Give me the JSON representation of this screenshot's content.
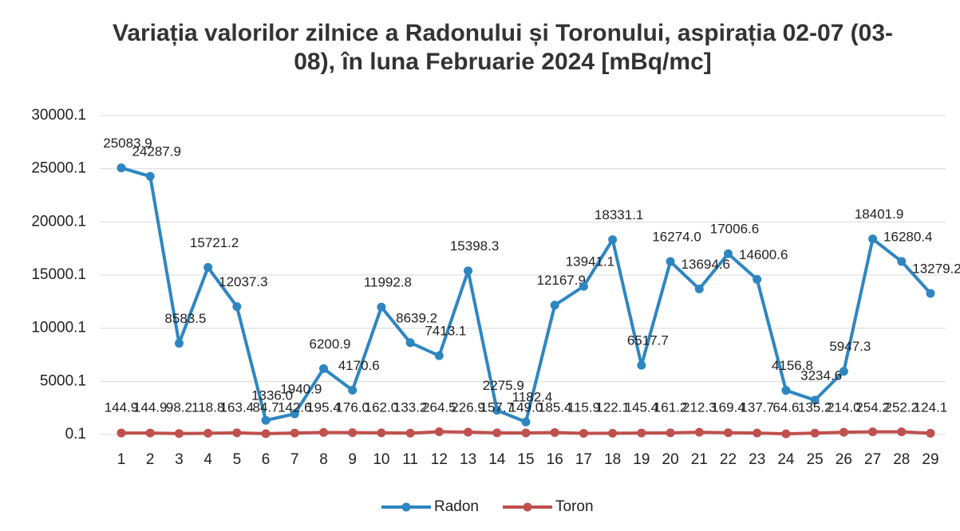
{
  "chart_data": {
    "type": "line",
    "title": "Variația valorilor zilnice a Radonului și Toronului, aspirația 02-07 (03-08), în luna Februarie 2024 [mBq/mc]",
    "categories": [
      "1",
      "2",
      "3",
      "4",
      "5",
      "6",
      "7",
      "8",
      "9",
      "10",
      "11",
      "12",
      "13",
      "14",
      "15",
      "16",
      "17",
      "18",
      "19",
      "20",
      "21",
      "22",
      "23",
      "24",
      "25",
      "26",
      "27",
      "28",
      "29"
    ],
    "series": [
      {
        "name": "Radon",
        "color": "#2e86c1",
        "values": [
          25083.9,
          24287.9,
          8583.5,
          15721.2,
          12037.3,
          1336.0,
          1940.9,
          6200.9,
          4170.6,
          11992.8,
          8639.2,
          7413.1,
          15398.3,
          2275.9,
          1182.4,
          12167.9,
          13941.1,
          18331.1,
          6517.7,
          16274.0,
          13694.6,
          17006.6,
          14600.6,
          4156.8,
          3234.6,
          5947.3,
          18401.9,
          16280.4,
          13279.2
        ],
        "value_labels": [
          "25083.9",
          "24287.9",
          "8583.5",
          "15721.2",
          "12037.3",
          "1336.0",
          "1940.9",
          "6200.9",
          "4170.6",
          "11992.8",
          "8639.2",
          "7413.1",
          "15398.3",
          "2275.9",
          "1182.4",
          "12167.9",
          "13941.1",
          "18331.1",
          "6517.7",
          "16274.0",
          "13694.6",
          "17006.6",
          "14600.6",
          "4156.8",
          "3234.6",
          "5947.3",
          "18401.9",
          "16280.4",
          "13279.2"
        ]
      },
      {
        "name": "Toron",
        "color": "#c0504d",
        "values": [
          144.9,
          144.9,
          98.2,
          118.8,
          163.4,
          84.7,
          142.6,
          195.4,
          176.0,
          162.0,
          133.2,
          264.5,
          226.9,
          157.7,
          149.0,
          185.4,
          115.9,
          122.1,
          145.4,
          161.2,
          212.3,
          169.4,
          137.7,
          64.6,
          135.2,
          214.0,
          254.2,
          252.2,
          124.1
        ],
        "value_labels": [
          "144.9",
          "144.9",
          "98.2",
          "118.8",
          "163.4",
          "84.7",
          "142.6",
          "195.4",
          "176.0",
          "162.0",
          "133.2",
          "264.5",
          "226.9",
          "157.7",
          "149.0",
          "185.4",
          "115.9",
          "122.1",
          "145.4",
          "161.2",
          "212.3",
          "169.4",
          "137.7",
          "64.6",
          "135.2",
          "214.0",
          "254.2",
          "252.2",
          "124.1"
        ]
      }
    ],
    "ylim": [
      0.1,
      30000.1
    ],
    "yticks": [
      0.1,
      5000.1,
      10000.1,
      15000.1,
      20000.1,
      25000.1,
      30000.1
    ],
    "grid": true,
    "legend": "bottom"
  }
}
